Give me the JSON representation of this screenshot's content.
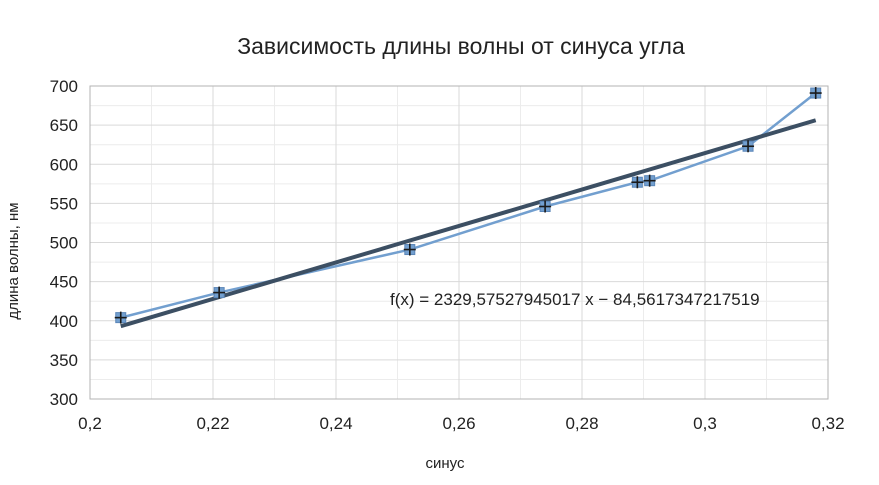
{
  "chart_data": {
    "type": "scatter",
    "title": "Зависимость длины волны от синуса угла",
    "xlabel": "синус",
    "ylabel": "длина волны, нм",
    "xlim": [
      0.2,
      0.32
    ],
    "ylim": [
      300,
      700
    ],
    "x_ticks": [
      0.2,
      0.22,
      0.24,
      0.26,
      0.28,
      0.3,
      0.32
    ],
    "x_tick_labels": [
      "0,2",
      "0,22",
      "0,24",
      "0,26",
      "0,28",
      "0,3",
      "0,32"
    ],
    "y_ticks": [
      300,
      350,
      400,
      450,
      500,
      550,
      600,
      650,
      700
    ],
    "y_tick_labels": [
      "300",
      "350",
      "400",
      "450",
      "500",
      "550",
      "600",
      "650",
      "700"
    ],
    "grid": true,
    "legend": "none",
    "series": [
      {
        "style": "line-with-markers",
        "color": "#729fcf",
        "x": [
          0.205,
          0.221,
          0.252,
          0.274,
          0.289,
          0.291,
          0.307,
          0.318
        ],
        "y": [
          404,
          436,
          491,
          546,
          577,
          579,
          623,
          691
        ]
      }
    ],
    "trendline": {
      "type": "linear",
      "color": "#3c4f63",
      "slope": 2329.57527945017,
      "intercept": -84.5617347217519,
      "x_range": [
        0.205,
        0.318
      ],
      "equation": "f(x) = 2329,57527945017 x − 84,5617347217519"
    }
  }
}
